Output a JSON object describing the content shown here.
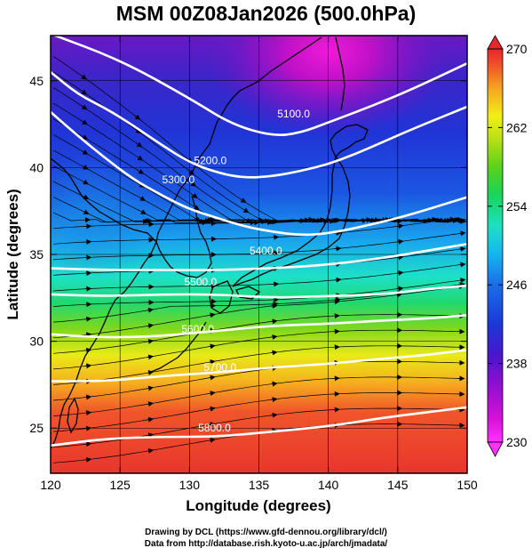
{
  "title": "MSM 00Z08Jan2026 (500.0hPa)",
  "chart_data": {
    "type": "map",
    "x": {
      "label": "Longitude (degrees)",
      "range": [
        120,
        150
      ],
      "ticks": [
        120,
        125,
        130,
        135,
        140,
        145,
        150
      ]
    },
    "y": {
      "label": "Latitude  (degrees)",
      "range": [
        22.4,
        47.6
      ],
      "ticks": [
        25,
        30,
        35,
        40,
        45
      ]
    },
    "colorbar": {
      "range": [
        230,
        270
      ],
      "labels": [
        230,
        238,
        246,
        254,
        262,
        270
      ],
      "unit": ""
    },
    "contours": [
      {
        "label": "5100.0",
        "lon": [
          120,
          125,
          130,
          133,
          136,
          138,
          140,
          143,
          146,
          150
        ],
        "lat": [
          47.7,
          46.2,
          44,
          42.5,
          41.8,
          42.0,
          42.6,
          43.5,
          44.5,
          46.0
        ],
        "label_lon": 137.5,
        "label_lat": 42.9
      },
      {
        "label": "5200.0",
        "lon": [
          120,
          122,
          124,
          126,
          128,
          130,
          132,
          134,
          136,
          138,
          140,
          142,
          144,
          146,
          150
        ],
        "lat": [
          45.5,
          44.2,
          43.4,
          42.4,
          41.3,
          40.3,
          39.7,
          39.4,
          39.5,
          39.8,
          40.2,
          40.8,
          41.5,
          42.2,
          43.5
        ],
        "label_lon": 131.5,
        "label_lat": 40.2
      },
      {
        "label": "5300.0",
        "lon": [
          120,
          122,
          124,
          126,
          128,
          130,
          132,
          134,
          136,
          138,
          140,
          143,
          146,
          150
        ],
        "lat": [
          43.2,
          41.8,
          40.5,
          39.3,
          38.4,
          37.6,
          37.1,
          36.6,
          36.3,
          36.1,
          36.2,
          36.7,
          37.3,
          38.3
        ],
        "label_lon": 129.2,
        "label_lat": 39.1
      },
      {
        "label": "5400.0",
        "lon": [
          120,
          124,
          128,
          132,
          136,
          140,
          144,
          147,
          150
        ],
        "lat": [
          34.2,
          34.1,
          34.1,
          34.1,
          34.2,
          34.4,
          34.8,
          35.2,
          35.6
        ],
        "label_lon": 135.5,
        "label_lat": 35.0
      },
      {
        "label": "5500.0",
        "lon": [
          120,
          124,
          128,
          132,
          136,
          140,
          144,
          147,
          150
        ],
        "lat": [
          32.7,
          32.6,
          32.7,
          32.7,
          32.5,
          32.6,
          32.7,
          33.0,
          33.2
        ],
        "label_lon": 130.8,
        "label_lat": 33.2
      },
      {
        "label": "5600.0",
        "lon": [
          120,
          124,
          128,
          132,
          136,
          140,
          144,
          147,
          150
        ],
        "lat": [
          30.4,
          30.2,
          30.3,
          30.6,
          30.9,
          31.0,
          31.2,
          31.3,
          31.5
        ],
        "label_lon": 130.6,
        "label_lat": 30.5
      },
      {
        "label": "5700.0",
        "lon": [
          120,
          124,
          128,
          132,
          136,
          140,
          144,
          147,
          150
        ],
        "lat": [
          27.7,
          27.7,
          28.0,
          28.2,
          28.5,
          28.7,
          29.0,
          29.2,
          29.5
        ],
        "label_lon": 132.2,
        "label_lat": 28.3
      },
      {
        "label": "5800.0",
        "lon": [
          120,
          124,
          128,
          132,
          136,
          140,
          144,
          147,
          150
        ],
        "lat": [
          24.0,
          24.4,
          24.5,
          24.5,
          24.8,
          25.1,
          25.6,
          25.9,
          26.2
        ],
        "label_lon": 131.8,
        "label_lat": 24.8
      }
    ],
    "grid": true
  },
  "credits": {
    "line1": "Drawing by DCL (https://www.gfd-dennou.org/library/dcl/)",
    "line2": "Data from http://database.rish.kyoto-u.ac.jp/arch/jmadata/"
  }
}
